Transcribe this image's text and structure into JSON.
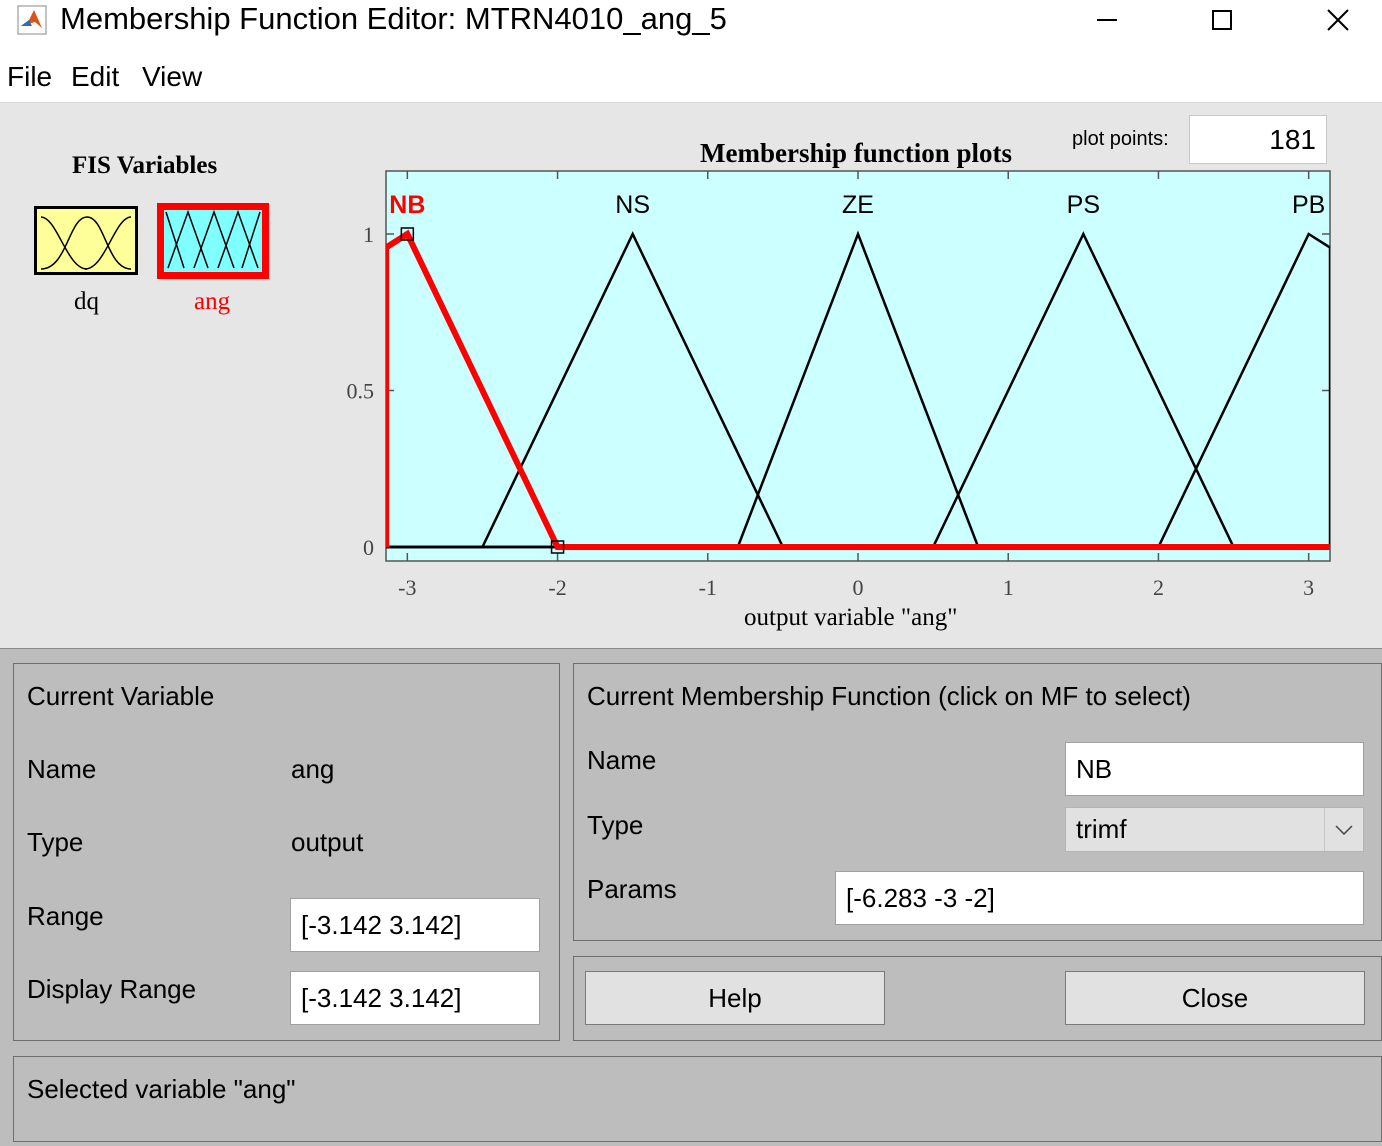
{
  "window": {
    "title": "Membership Function Editor: MTRN4010_ang_5",
    "icon": "matlab-icon",
    "controls": [
      "minimize-icon",
      "maximize-icon",
      "close-icon"
    ]
  },
  "menu": [
    "File",
    "Edit",
    "View"
  ],
  "fis_variables": {
    "title": "FIS Variables",
    "items": [
      {
        "label": "dq",
        "kind": "input",
        "color": "#ffff99",
        "selected": false
      },
      {
        "label": "ang",
        "kind": "output",
        "color": "#80ffff",
        "selected": true
      }
    ]
  },
  "plot_points": {
    "label": "plot points:",
    "value": "181"
  },
  "chart_data": {
    "type": "line",
    "title": "Membership function plots",
    "xlabel": "output variable \"ang\"",
    "ylabel": "",
    "xlim": [
      -3.142,
      3.142
    ],
    "ylim": [
      0,
      1.2
    ],
    "xticks": [
      -3,
      -2,
      -1,
      0,
      1,
      2,
      3
    ],
    "yticks": [
      0,
      0.5,
      1
    ],
    "background": "#ccffff",
    "selected_color": "#ff0000",
    "grid": false,
    "series": [
      {
        "name": "NB",
        "mf": "trimf",
        "params": [
          -6.283,
          -3,
          -2
        ],
        "selected": true
      },
      {
        "name": "NS",
        "mf": "trimf",
        "params": [
          -2.5,
          -1.5,
          -0.5
        ],
        "selected": false
      },
      {
        "name": "ZE",
        "mf": "trimf",
        "params": [
          -0.8,
          0,
          0.8
        ],
        "selected": false
      },
      {
        "name": "PS",
        "mf": "trimf",
        "params": [
          0.5,
          1.5,
          2.5
        ],
        "selected": false
      },
      {
        "name": "PB",
        "mf": "trimf",
        "params": [
          2,
          3,
          6.283
        ],
        "selected": false
      }
    ]
  },
  "current_variable": {
    "title": "Current Variable",
    "name_label": "Name",
    "name_value": "ang",
    "type_label": "Type",
    "type_value": "output",
    "range_label": "Range",
    "range_value": "[-3.142 3.142]",
    "display_range_label": "Display Range",
    "display_range_value": "[-3.142 3.142]"
  },
  "current_mf": {
    "title": "Current Membership Function (click on MF to select)",
    "name_label": "Name",
    "name_value": "NB",
    "type_label": "Type",
    "type_value": "trimf",
    "params_label": "Params",
    "params_value": "[-6.283 -3 -2]"
  },
  "buttons": {
    "help": "Help",
    "close": "Close"
  },
  "status": "Selected variable \"ang\""
}
